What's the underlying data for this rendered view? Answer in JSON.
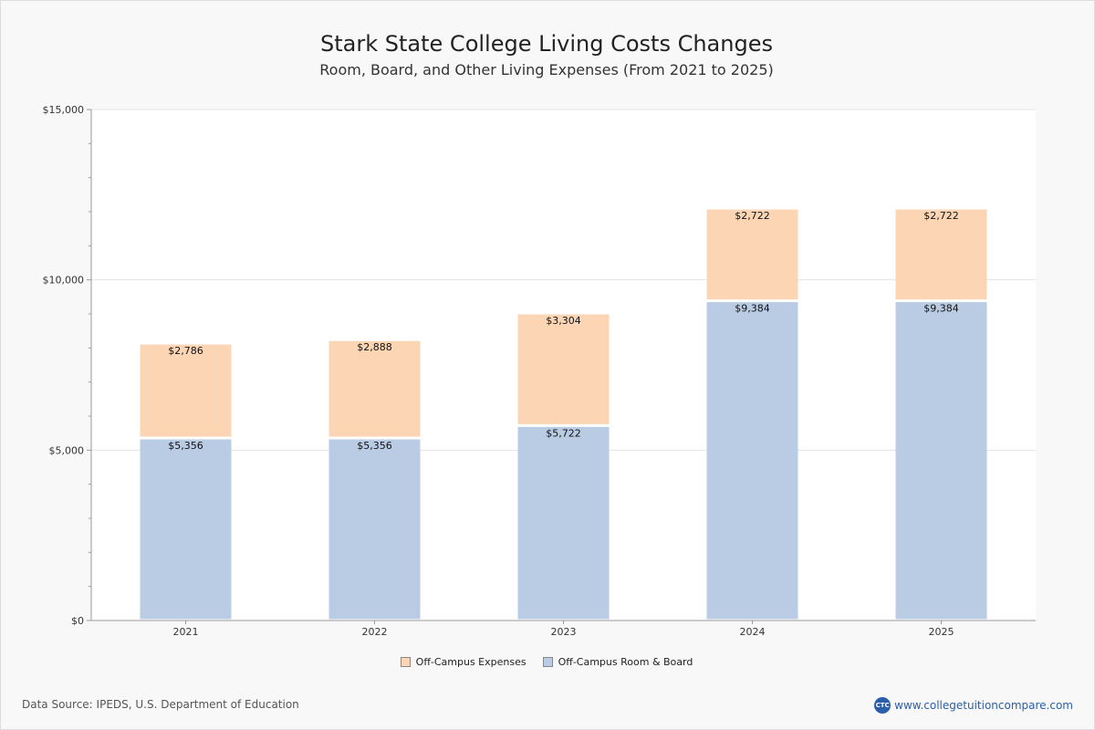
{
  "chart_data": {
    "type": "bar",
    "stacked": true,
    "title": "Stark State College Living Costs Changes",
    "subtitle": "Room, Board, and Other Living Expenses (From 2021 to 2025)",
    "categories": [
      "2021",
      "2022",
      "2023",
      "2024",
      "2025"
    ],
    "series": [
      {
        "name": "Off-Campus Room & Board",
        "color": "#b9cce4",
        "values": [
          5356,
          5356,
          5722,
          9384,
          9384
        ],
        "labels": [
          "$5,356",
          "$5,356",
          "$5,722",
          "$9,384",
          "$9,384"
        ]
      },
      {
        "name": "Off-Campus Expenses",
        "color": "#fcd5b4",
        "values": [
          2786,
          2888,
          3304,
          2722,
          2722
        ],
        "labels": [
          "$2,786",
          "$2,888",
          "$3,304",
          "$2,722",
          "$2,722"
        ]
      }
    ],
    "ylim": [
      0,
      15000
    ],
    "yticks": [
      0,
      5000,
      10000,
      15000
    ],
    "ytick_labels": [
      "$0",
      "$5,000",
      "$10,000",
      "$15,000"
    ],
    "grid": true,
    "legend": "bottom-center"
  },
  "legend": {
    "items": [
      {
        "label": "Off-Campus Expenses",
        "color": "#fcd5b4"
      },
      {
        "label": "Off-Campus Room & Board",
        "color": "#b9cce4"
      }
    ]
  },
  "footer": {
    "source": "Data Source: IPEDS, U.S. Department of Education",
    "brand_logo": "CTC",
    "brand_url": "www.collegetuitioncompare.com"
  }
}
